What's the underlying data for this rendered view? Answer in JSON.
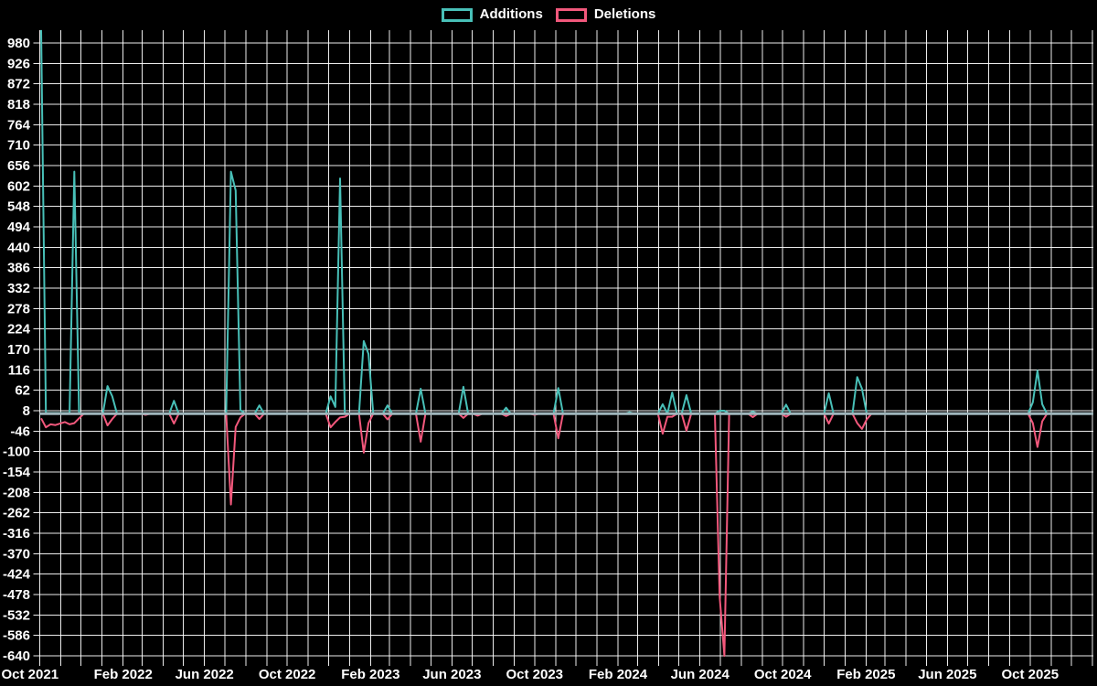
{
  "chart_data": {
    "type": "line",
    "title": "",
    "legend": {
      "additions_label": "Additions",
      "deletions_label": "Deletions"
    },
    "series_names": [
      "Additions",
      "Deletions"
    ],
    "colors": {
      "additions": "#48c0b8",
      "deletions": "#f2587c",
      "zero_line": "#9fb6bc",
      "grid": "#ffffff",
      "text": "#ffffff",
      "background": "#000000"
    },
    "y_axis": {
      "min": -640,
      "max": 980,
      "tick_step": 54,
      "ticks": [
        980,
        926,
        872,
        818,
        764,
        710,
        656,
        602,
        548,
        494,
        440,
        386,
        332,
        278,
        224,
        170,
        116,
        62,
        8,
        -46,
        -100,
        -154,
        -208,
        -262,
        -316,
        -370,
        -424,
        -478,
        -532,
        -586,
        -640
      ]
    },
    "x_axis": {
      "start_date": "2021-10-01",
      "end_date": "2026-01-01",
      "tick_labels": [
        "Oct 2021",
        "Feb 2022",
        "Jun 2022",
        "Oct 2022",
        "Feb 2023",
        "Jun 2023",
        "Oct 2023",
        "Feb 2024",
        "Jun 2024",
        "Oct 2024",
        "Feb 2025",
        "Jun 2025",
        "Oct 2025"
      ],
      "label_interval_months": 4,
      "gridline_interval_months": 1
    },
    "sampling": "weekly",
    "first_week": "2021-10-03",
    "weeks_count": 222,
    "baseline": {
      "additions": 0,
      "deletions": 0
    },
    "weekly_events": {
      "2021-10-03": {
        "additions": 1014,
        "deletions": -12
      },
      "2021-10-10": {
        "additions": 2,
        "deletions": -36
      },
      "2021-10-17": {
        "additions": 2,
        "deletions": -28
      },
      "2021-10-24": {
        "additions": 2,
        "deletions": -30
      },
      "2021-10-31": {
        "additions": 2,
        "deletions": -26
      },
      "2021-11-07": {
        "additions": 2,
        "deletions": -22
      },
      "2021-11-14": {
        "additions": 2,
        "deletions": -28
      },
      "2021-11-21": {
        "additions": 640,
        "deletions": -25
      },
      "2021-11-28": {
        "additions": 2,
        "deletions": -12
      },
      "2022-01-09": {
        "additions": 73,
        "deletions": -31
      },
      "2022-01-16": {
        "additions": 46,
        "deletions": -14
      },
      "2022-03-06": {
        "additions": 0,
        "deletions": -3
      },
      "2022-04-17": {
        "additions": 34,
        "deletions": -26
      },
      "2022-07-10": {
        "additions": 640,
        "deletions": -240
      },
      "2022-07-17": {
        "additions": 590,
        "deletions": -35
      },
      "2022-07-24": {
        "additions": 10,
        "deletions": -10
      },
      "2022-08-21": {
        "additions": 22,
        "deletions": -14
      },
      "2022-12-04": {
        "additions": 46,
        "deletions": -36
      },
      "2022-12-11": {
        "additions": 18,
        "deletions": -22
      },
      "2022-12-18": {
        "additions": 622,
        "deletions": -10
      },
      "2022-12-25": {
        "additions": 0,
        "deletions": -8
      },
      "2023-01-22": {
        "additions": 192,
        "deletions": -103
      },
      "2023-01-29": {
        "additions": 158,
        "deletions": -25
      },
      "2023-02-26": {
        "additions": 22,
        "deletions": -15
      },
      "2023-04-16": {
        "additions": 66,
        "deletions": -74
      },
      "2023-06-18": {
        "additions": 71,
        "deletions": -11
      },
      "2023-07-09": {
        "additions": 0,
        "deletions": -5
      },
      "2023-08-20": {
        "additions": 16,
        "deletions": -6
      },
      "2023-10-01": {
        "additions": 0,
        "deletions": -3
      },
      "2023-11-05": {
        "additions": 68,
        "deletions": -65
      },
      "2024-02-18": {
        "additions": 4,
        "deletions": 0
      },
      "2024-04-07": {
        "additions": 25,
        "deletions": -53
      },
      "2024-04-14": {
        "additions": 0,
        "deletions": -8
      },
      "2024-04-21": {
        "additions": 56,
        "deletions": -8
      },
      "2024-05-12": {
        "additions": 49,
        "deletions": -45
      },
      "2024-06-30": {
        "additions": 8,
        "deletions": -483
      },
      "2024-07-07": {
        "additions": 8,
        "deletions": -640
      },
      "2024-08-18": {
        "additions": 5,
        "deletions": -9
      },
      "2024-10-06": {
        "additions": 24,
        "deletions": -8
      },
      "2024-12-08": {
        "additions": 54,
        "deletions": -26
      },
      "2025-01-19": {
        "additions": 97,
        "deletions": -25
      },
      "2025-01-26": {
        "additions": 66,
        "deletions": -40
      },
      "2025-02-02": {
        "additions": 0,
        "deletions": -15
      },
      "2025-10-05": {
        "additions": 30,
        "deletions": -25
      },
      "2025-10-12": {
        "additions": 114,
        "deletions": -88
      },
      "2025-10-19": {
        "additions": 25,
        "deletions": -20
      }
    }
  }
}
